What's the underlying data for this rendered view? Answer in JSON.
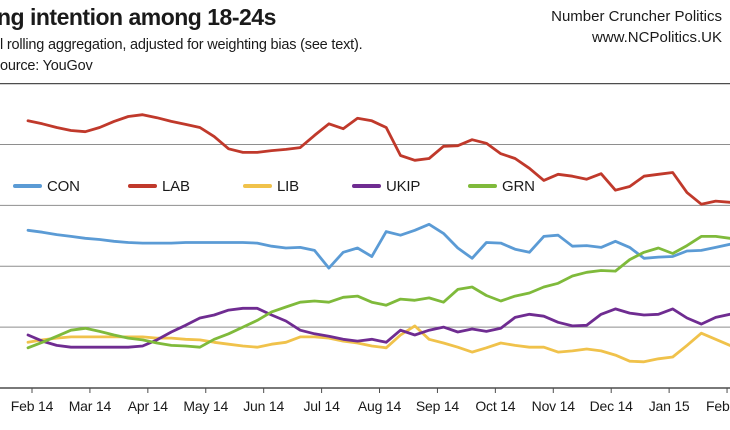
{
  "header": {
    "subtitle_fragment": "l rolling aggregation, adjusted for weighting bias (see text).",
    "source_fragment": "ource: YouGov",
    "brand_line1": "Number Cruncher Politics",
    "brand_line2": "www.NCPolitics.UK"
  },
  "chart_data": {
    "type": "line",
    "title": "ng intention among 18-24s",
    "subtitle": "l rolling aggregation, adjusted for weighting bias (see text).",
    "source": "ource: YouGov",
    "xlabel": "",
    "ylabel": "",
    "ylim": [
      0,
      50
    ],
    "gridline_values": [
      10,
      20,
      30,
      40
    ],
    "grid_color": "#8e8e8e",
    "axis_color": "#4d4d4d",
    "legend_position": "inside-top-left-row",
    "x_labels": [
      "Feb 14",
      "Mar 14",
      "Apr 14",
      "May 14",
      "Jun 14",
      "Jul 14",
      "Aug 14",
      "Sep 14",
      "Oct 14",
      "Nov 14",
      "Dec 14",
      "Jan 15",
      "Feb"
    ],
    "x_range_months": [
      0,
      12.08
    ],
    "series": [
      {
        "name": "CON",
        "color": "#5B9BD5",
        "values": [
          25.9,
          25.6,
          25.2,
          24.9,
          24.6,
          24.4,
          24.1,
          23.9,
          23.8,
          23.8,
          23.8,
          23.9,
          23.9,
          23.9,
          23.9,
          23.9,
          23.8,
          23.3,
          23.0,
          23.1,
          22.6,
          19.7,
          22.3,
          23.0,
          21.6,
          25.7,
          25.1,
          25.9,
          26.9,
          25.4,
          23.0,
          21.3,
          23.9,
          23.8,
          22.8,
          22.3,
          24.9,
          25.1,
          23.3,
          23.4,
          23.1,
          24.1,
          23.1,
          21.3,
          21.5,
          21.6,
          22.5,
          22.6,
          23.1,
          23.6
        ]
      },
      {
        "name": "LAB",
        "color": "#C0392B",
        "values": [
          43.9,
          43.4,
          42.8,
          42.3,
          42.1,
          42.8,
          43.8,
          44.6,
          44.9,
          44.4,
          43.8,
          43.3,
          42.8,
          41.3,
          39.3,
          38.7,
          38.7,
          39.0,
          39.2,
          39.5,
          41.5,
          43.4,
          42.6,
          44.3,
          43.9,
          42.8,
          38.2,
          37.4,
          37.7,
          39.7,
          39.8,
          40.8,
          40.2,
          38.5,
          37.7,
          36.1,
          34.1,
          35.1,
          34.8,
          34.3,
          35.2,
          32.5,
          33.1,
          34.8,
          35.1,
          35.4,
          32.1,
          30.2,
          30.7,
          30.5
        ]
      },
      {
        "name": "LIB",
        "color": "#F0C24B",
        "values": [
          7.5,
          7.9,
          8.2,
          8.4,
          8.4,
          8.4,
          8.4,
          8.4,
          8.4,
          8.2,
          8.2,
          8.0,
          7.9,
          7.5,
          7.2,
          6.9,
          6.7,
          7.2,
          7.5,
          8.4,
          8.4,
          8.2,
          7.7,
          7.4,
          6.9,
          6.6,
          8.7,
          10.2,
          8.0,
          7.4,
          6.7,
          5.9,
          6.6,
          7.4,
          7.0,
          6.7,
          6.7,
          5.9,
          6.1,
          6.4,
          6.1,
          5.4,
          4.4,
          4.3,
          4.8,
          5.1,
          7.0,
          9.0,
          8.0,
          7.0
        ]
      },
      {
        "name": "UKIP",
        "color": "#6F2C91",
        "values": [
          8.7,
          7.7,
          7.0,
          6.7,
          6.7,
          6.7,
          6.7,
          6.7,
          6.9,
          7.9,
          9.2,
          10.3,
          11.5,
          12.0,
          12.8,
          13.1,
          13.1,
          12.0,
          11.0,
          9.5,
          8.9,
          8.5,
          8.0,
          7.7,
          8.0,
          7.5,
          9.5,
          8.7,
          9.5,
          10.0,
          9.2,
          9.7,
          9.3,
          9.8,
          11.6,
          12.1,
          11.8,
          10.8,
          10.2,
          10.3,
          12.1,
          13.0,
          12.3,
          12.0,
          12.1,
          13.0,
          11.5,
          10.5,
          11.6,
          12.1
        ]
      },
      {
        "name": "GRN",
        "color": "#7FBA3B",
        "values": [
          6.6,
          7.5,
          8.5,
          9.5,
          9.8,
          9.3,
          8.7,
          8.2,
          7.9,
          7.4,
          7.0,
          6.9,
          6.7,
          8.0,
          8.9,
          10.0,
          11.1,
          12.5,
          13.3,
          14.1,
          14.3,
          14.1,
          14.9,
          15.1,
          14.1,
          13.6,
          14.6,
          14.4,
          14.8,
          14.1,
          16.2,
          16.6,
          15.2,
          14.3,
          15.1,
          15.6,
          16.6,
          17.2,
          18.4,
          19.0,
          19.3,
          19.2,
          21.1,
          22.3,
          23.0,
          22.1,
          23.4,
          24.9,
          24.9,
          24.6
        ]
      }
    ]
  }
}
